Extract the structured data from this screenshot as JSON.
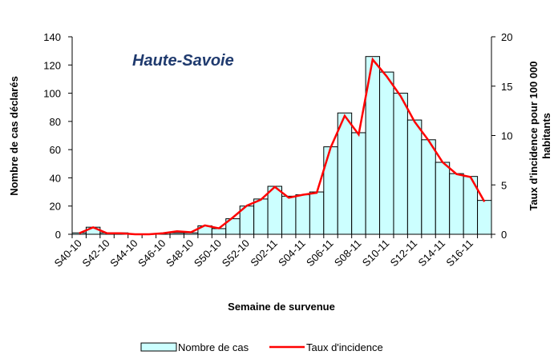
{
  "chart_data": {
    "type": "bar-line",
    "annotation": "Haute-Savoie",
    "y_label": "Nombre de cas déclarés",
    "y2_label": [
      "Taux d'incidence pour 100 000",
      "habitants"
    ],
    "x_label": "Semaine de survenue",
    "categories": [
      "S40-10",
      null,
      "S42-10",
      null,
      "S44-10",
      null,
      "S46-10",
      null,
      "S48-10",
      null,
      "S50-10",
      null,
      "S52-10",
      null,
      "S02-11",
      null,
      "S04-11",
      null,
      "S06-11",
      null,
      "S08-11",
      null,
      "S10-11",
      null,
      "S12-11",
      null,
      "S14-11",
      null,
      "S16-11",
      null
    ],
    "series": [
      {
        "name": "Nombre de cas",
        "type": "bar",
        "color": "#ccffff",
        "values": [
          1,
          5,
          1,
          1,
          0,
          0,
          0,
          1,
          1,
          6,
          4,
          11,
          20,
          25,
          34,
          27,
          28,
          30,
          62,
          86,
          72,
          126,
          115,
          100,
          81,
          67,
          51,
          43,
          41,
          24
        ]
      },
      {
        "name": "Taux d'incidence",
        "type": "line",
        "axis": "y2",
        "color": "#ff0000",
        "values": [
          0.1,
          0.7,
          0.1,
          0.1,
          0,
          0,
          0.1,
          0.3,
          0.2,
          0.9,
          0.6,
          1.7,
          2.9,
          3.5,
          4.8,
          3.7,
          4.0,
          4.2,
          8.8,
          12.0,
          10.1,
          17.7,
          16.0,
          14.0,
          11.4,
          9.5,
          7.3,
          6.1,
          5.8,
          3.3
        ]
      }
    ],
    "ylim": [
      0,
      140
    ],
    "yticks": [
      0,
      20,
      40,
      60,
      80,
      100,
      120,
      140
    ],
    "y2lim": [
      0,
      20
    ],
    "y2ticks": [
      0,
      5,
      10,
      15,
      20
    ],
    "legend": "bottom"
  }
}
